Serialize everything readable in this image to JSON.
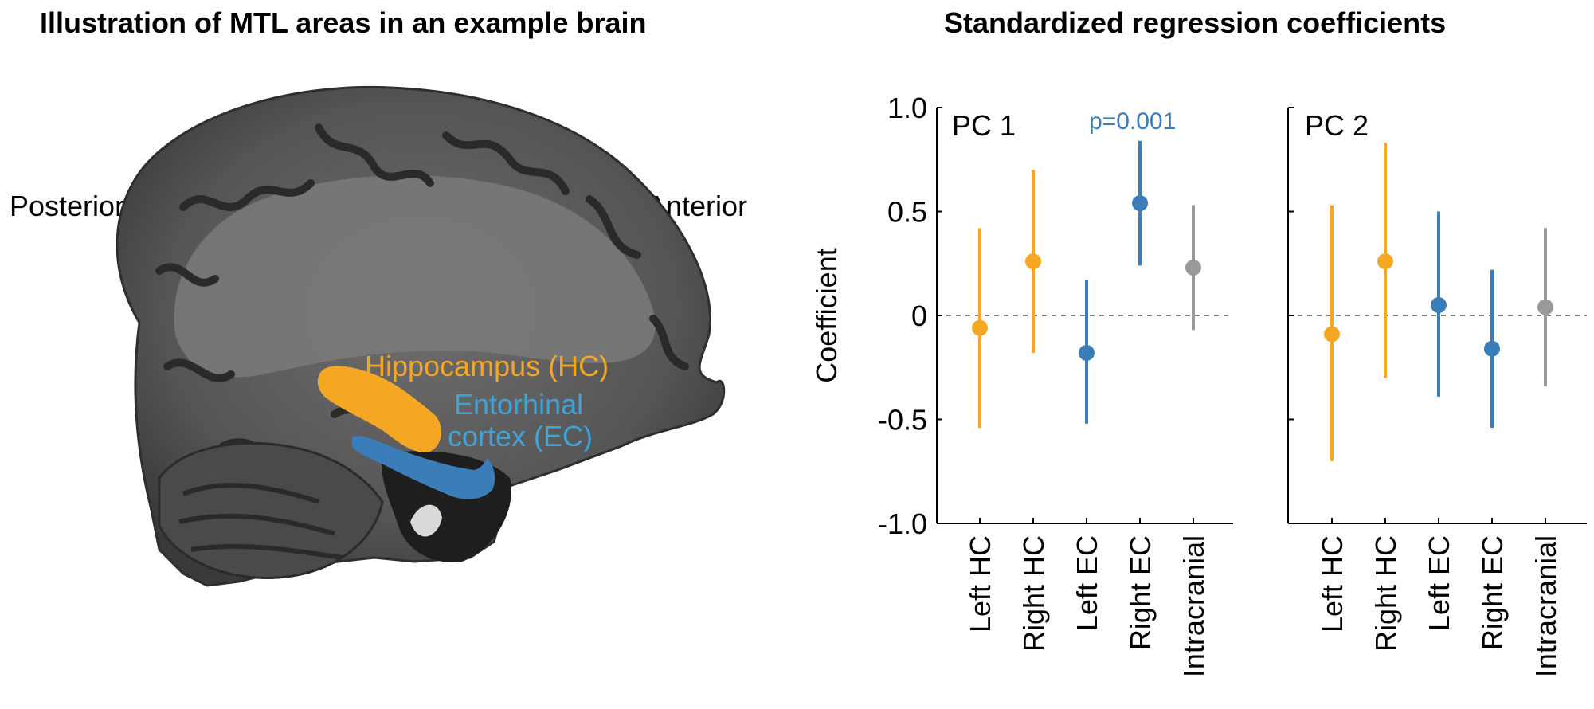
{
  "left_panel": {
    "title": "Illustration of MTL areas in an example brain",
    "posterior_label": "Posterior",
    "anterior_label": "Anterior",
    "hc_label": "Hippocampus (HC)",
    "ec_label_line1": "Entorhinal",
    "ec_label_line2": "cortex (EC)"
  },
  "right_panel": {
    "title": "Standardized regression coefficients",
    "ylabel": "Coefficient"
  },
  "colors": {
    "hc": "#F5A623",
    "ec": "#3B7DB8",
    "ec_label": "#3FA3D8",
    "intracranial": "#999999",
    "annotation": "#3B7DB8"
  },
  "chart_data": [
    {
      "type": "scatter",
      "panel_label": "PC 1",
      "annotation": "p=0.001",
      "categories": [
        "Left HC",
        "Right HC",
        "Left EC",
        "Right EC",
        "Intracranial"
      ],
      "values": [
        -0.06,
        0.26,
        -0.18,
        0.54,
        0.23
      ],
      "ci_low": [
        -0.54,
        -0.18,
        -0.52,
        0.24,
        -0.07
      ],
      "ci_high": [
        0.42,
        0.7,
        0.17,
        0.84,
        0.53
      ],
      "point_colors": [
        "#F5A623",
        "#F5A623",
        "#3B7DB8",
        "#3B7DB8",
        "#999999"
      ],
      "ylim": [
        -1.0,
        1.0
      ],
      "yticks": [
        -1.0,
        -0.5,
        0,
        0.5,
        1.0
      ],
      "ytick_labels": [
        "-1.0",
        "-0.5",
        "0",
        "0.5",
        "1.0"
      ],
      "reference_line": 0,
      "ylabel": "Coefficient"
    },
    {
      "type": "scatter",
      "panel_label": "PC 2",
      "categories": [
        "Left HC",
        "Right HC",
        "Left EC",
        "Right EC",
        "Intracranial"
      ],
      "values": [
        -0.09,
        0.26,
        0.05,
        -0.16,
        0.04
      ],
      "ci_low": [
        -0.7,
        -0.3,
        -0.39,
        -0.54,
        -0.34
      ],
      "ci_high": [
        0.53,
        0.83,
        0.5,
        0.22,
        0.42
      ],
      "point_colors": [
        "#F5A623",
        "#F5A623",
        "#3B7DB8",
        "#3B7DB8",
        "#999999"
      ],
      "ylim": [
        -1.0,
        1.0
      ],
      "yticks": [
        -1.0,
        -0.5,
        0,
        0.5,
        1.0
      ],
      "reference_line": 0
    }
  ]
}
